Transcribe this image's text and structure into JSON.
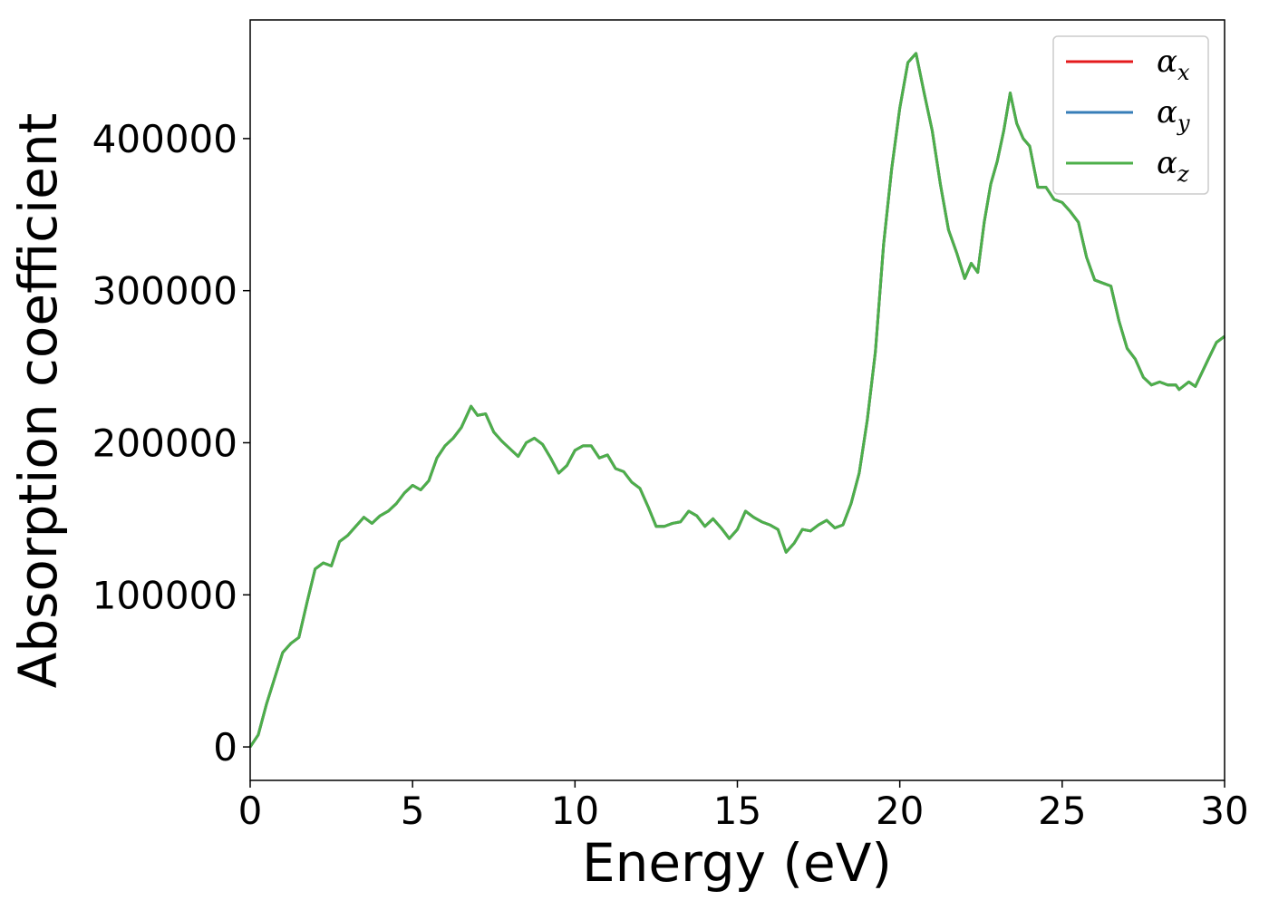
{
  "chart_data": {
    "type": "line",
    "xlabel": "Energy (eV)",
    "ylabel": "Absorption coefficient",
    "x": [
      0,
      0.25,
      0.5,
      0.75,
      1.0,
      1.25,
      1.5,
      1.75,
      2.0,
      2.25,
      2.5,
      2.75,
      3.0,
      3.25,
      3.5,
      3.75,
      4.0,
      4.25,
      4.5,
      4.75,
      5.0,
      5.25,
      5.5,
      5.75,
      6.0,
      6.25,
      6.5,
      6.8,
      7.0,
      7.25,
      7.5,
      7.75,
      8.0,
      8.25,
      8.5,
      8.75,
      9.0,
      9.25,
      9.5,
      9.75,
      10.0,
      10.25,
      10.5,
      10.75,
      11.0,
      11.25,
      11.5,
      11.75,
      12.0,
      12.25,
      12.5,
      12.75,
      13.0,
      13.25,
      13.5,
      13.75,
      14.0,
      14.25,
      14.5,
      14.75,
      15.0,
      15.25,
      15.5,
      15.75,
      16.0,
      16.25,
      16.5,
      16.75,
      17.0,
      17.25,
      17.5,
      17.75,
      18.0,
      18.25,
      18.5,
      18.75,
      19.0,
      19.25,
      19.5,
      19.75,
      20.0,
      20.25,
      20.5,
      20.75,
      21.0,
      21.25,
      21.5,
      21.75,
      22.0,
      22.2,
      22.4,
      22.6,
      22.8,
      23.0,
      23.2,
      23.4,
      23.6,
      23.8,
      24.0,
      24.25,
      24.5,
      24.75,
      25.0,
      25.25,
      25.5,
      25.75,
      26.0,
      26.25,
      26.5,
      26.75,
      27.0,
      27.25,
      27.5,
      27.75,
      28.0,
      28.25,
      28.5,
      28.6,
      28.9,
      29.1,
      29.5,
      29.75,
      30.0
    ],
    "series": [
      {
        "name": "αx",
        "color": "#e41a1c",
        "values": [
          0,
          8000,
          28000,
          45000,
          62000,
          68000,
          72000,
          95000,
          117000,
          121000,
          119000,
          135000,
          139000,
          145000,
          151000,
          147000,
          152000,
          155000,
          160000,
          167000,
          172000,
          169000,
          175000,
          190000,
          198000,
          203000,
          210000,
          224000,
          218000,
          219000,
          207000,
          201000,
          196000,
          191000,
          200000,
          203000,
          199000,
          190000,
          180000,
          185000,
          195000,
          198000,
          198000,
          190000,
          192000,
          183000,
          181000,
          174000,
          170000,
          158000,
          145000,
          145000,
          147000,
          148000,
          155000,
          152000,
          145000,
          150000,
          144000,
          137000,
          143000,
          155000,
          151000,
          148000,
          146000,
          143000,
          128000,
          134000,
          143000,
          142000,
          146000,
          149000,
          144000,
          146000,
          160000,
          180000,
          215000,
          260000,
          330000,
          380000,
          420000,
          450000,
          456000,
          430000,
          405000,
          370000,
          340000,
          325000,
          308000,
          318000,
          312000,
          345000,
          370000,
          385000,
          405000,
          430000,
          410000,
          400000,
          395000,
          368000,
          368000,
          360000,
          358000,
          352000,
          345000,
          322000,
          307000,
          305000,
          303000,
          280000,
          262000,
          255000,
          243000,
          238000,
          240000,
          238000,
          238000,
          235000,
          240000,
          237000,
          255000,
          266000,
          270000
        ]
      },
      {
        "name": "αy",
        "color": "#377eb8",
        "values": [
          0,
          8000,
          28000,
          45000,
          62000,
          68000,
          72000,
          95000,
          117000,
          121000,
          119000,
          135000,
          139000,
          145000,
          151000,
          147000,
          152000,
          155000,
          160000,
          167000,
          172000,
          169000,
          175000,
          190000,
          198000,
          203000,
          210000,
          224000,
          218000,
          219000,
          207000,
          201000,
          196000,
          191000,
          200000,
          203000,
          199000,
          190000,
          180000,
          185000,
          195000,
          198000,
          198000,
          190000,
          192000,
          183000,
          181000,
          174000,
          170000,
          158000,
          145000,
          145000,
          147000,
          148000,
          155000,
          152000,
          145000,
          150000,
          144000,
          137000,
          143000,
          155000,
          151000,
          148000,
          146000,
          143000,
          128000,
          134000,
          143000,
          142000,
          146000,
          149000,
          144000,
          146000,
          160000,
          180000,
          215000,
          260000,
          330000,
          380000,
          420000,
          450000,
          456000,
          430000,
          405000,
          370000,
          340000,
          325000,
          308000,
          318000,
          312000,
          345000,
          370000,
          385000,
          405000,
          430000,
          410000,
          400000,
          395000,
          368000,
          368000,
          360000,
          358000,
          352000,
          345000,
          322000,
          307000,
          305000,
          303000,
          280000,
          262000,
          255000,
          243000,
          238000,
          240000,
          238000,
          238000,
          235000,
          240000,
          237000,
          255000,
          266000,
          270000
        ]
      },
      {
        "name": "αz",
        "color": "#4daf4a",
        "values": [
          0,
          8000,
          28000,
          45000,
          62000,
          68000,
          72000,
          95000,
          117000,
          121000,
          119000,
          135000,
          139000,
          145000,
          151000,
          147000,
          152000,
          155000,
          160000,
          167000,
          172000,
          169000,
          175000,
          190000,
          198000,
          203000,
          210000,
          224000,
          218000,
          219000,
          207000,
          201000,
          196000,
          191000,
          200000,
          203000,
          199000,
          190000,
          180000,
          185000,
          195000,
          198000,
          198000,
          190000,
          192000,
          183000,
          181000,
          174000,
          170000,
          158000,
          145000,
          145000,
          147000,
          148000,
          155000,
          152000,
          145000,
          150000,
          144000,
          137000,
          143000,
          155000,
          151000,
          148000,
          146000,
          143000,
          128000,
          134000,
          143000,
          142000,
          146000,
          149000,
          144000,
          146000,
          160000,
          180000,
          215000,
          260000,
          330000,
          380000,
          420000,
          450000,
          456000,
          430000,
          405000,
          370000,
          340000,
          325000,
          308000,
          318000,
          312000,
          345000,
          370000,
          385000,
          405000,
          430000,
          410000,
          400000,
          395000,
          368000,
          368000,
          360000,
          358000,
          352000,
          345000,
          322000,
          307000,
          305000,
          303000,
          280000,
          262000,
          255000,
          243000,
          238000,
          240000,
          238000,
          238000,
          235000,
          240000,
          237000,
          255000,
          266000,
          270000
        ]
      }
    ],
    "xlim": [
      0,
      30
    ],
    "xticks": [
      0,
      5,
      10,
      15,
      20,
      25,
      30
    ],
    "ylim": [
      -22000,
      478000
    ],
    "yticks": [
      0,
      100000,
      200000,
      300000,
      400000
    ],
    "grid": false,
    "legend": "upper right"
  }
}
